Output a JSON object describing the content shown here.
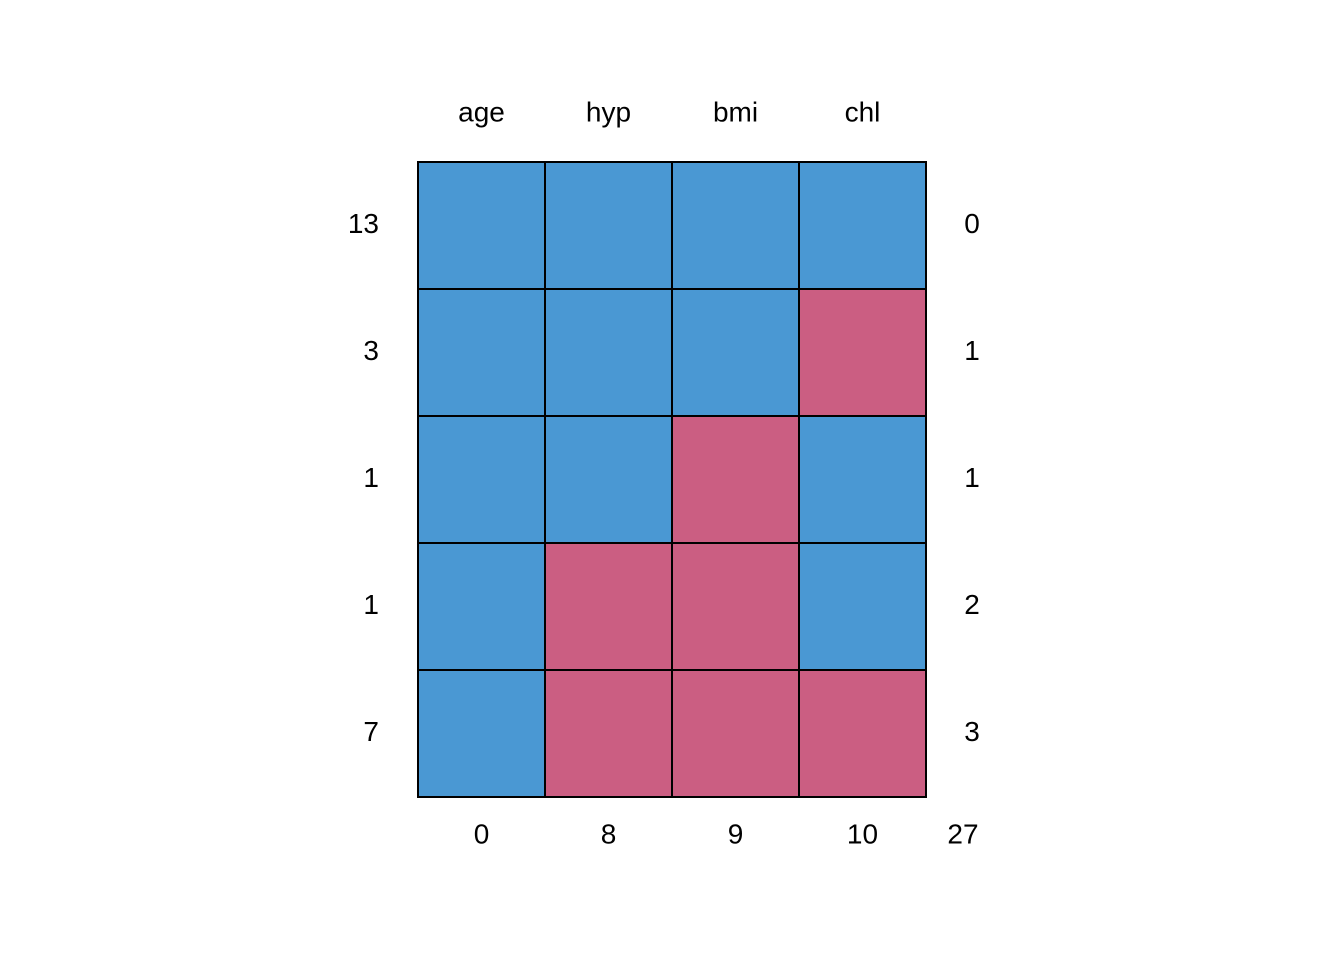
{
  "chart_data": {
    "type": "pattern",
    "columns": [
      "age",
      "hyp",
      "bmi",
      "chl"
    ],
    "row_counts": [
      13,
      3,
      1,
      1,
      7
    ],
    "pattern": [
      [
        1,
        1,
        1,
        1
      ],
      [
        1,
        1,
        1,
        0
      ],
      [
        1,
        1,
        0,
        1
      ],
      [
        1,
        0,
        0,
        1
      ],
      [
        1,
        0,
        0,
        0
      ]
    ],
    "row_missing": [
      0,
      1,
      1,
      2,
      3
    ],
    "column_missing": [
      0,
      8,
      9,
      10
    ],
    "total_missing": 27,
    "observed_color": "#4a98d3",
    "missing_color": "#cb5e82"
  }
}
